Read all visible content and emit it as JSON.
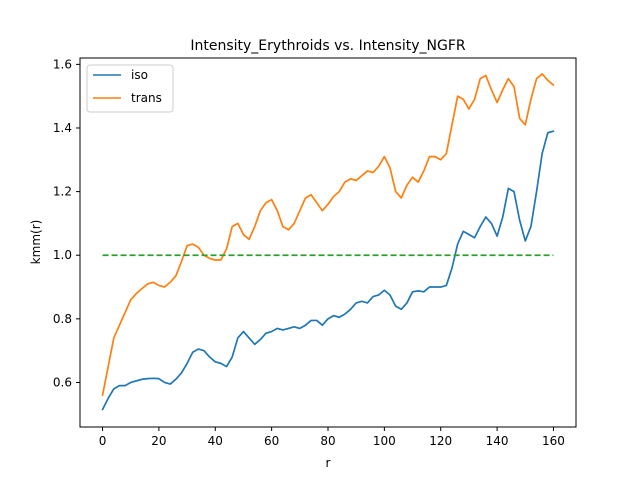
{
  "chart_data": {
    "type": "line",
    "title": "Intensity_Erythroids vs. Intensity_NGFR",
    "xlabel": "r",
    "ylabel": "kmm(r)",
    "xlim": [
      -8,
      168
    ],
    "ylim": [
      0.46,
      1.62
    ],
    "xticks": [
      0,
      20,
      40,
      60,
      80,
      100,
      120,
      140,
      160
    ],
    "yticks": [
      0.6,
      0.8,
      1.0,
      1.2,
      1.4,
      1.6
    ],
    "xtick_labels": [
      "0",
      "20",
      "40",
      "60",
      "80",
      "100",
      "120",
      "140",
      "160"
    ],
    "ytick_labels": [
      "0.6",
      "0.8",
      "1.0",
      "1.2",
      "1.4",
      "1.6"
    ],
    "grid": false,
    "legend_position": "top-left",
    "series": [
      {
        "name": "iso",
        "color": "#1f77b4",
        "style": "solid",
        "x": [
          0,
          2,
          4,
          6,
          8,
          10,
          12,
          14,
          16,
          18,
          20,
          22,
          24,
          26,
          28,
          30,
          32,
          34,
          36,
          38,
          40,
          42,
          44,
          46,
          48,
          50,
          52,
          54,
          56,
          58,
          60,
          62,
          64,
          66,
          68,
          70,
          72,
          74,
          76,
          78,
          80,
          82,
          84,
          86,
          88,
          90,
          92,
          94,
          96,
          98,
          100,
          102,
          104,
          106,
          108,
          110,
          112,
          114,
          116,
          118,
          120,
          122,
          124,
          126,
          128,
          130,
          132,
          134,
          136,
          138,
          140,
          142,
          144,
          146,
          148,
          150,
          152,
          154,
          156,
          158,
          160
        ],
        "y": [
          0.515,
          0.55,
          0.58,
          0.59,
          0.59,
          0.6,
          0.605,
          0.61,
          0.612,
          0.613,
          0.612,
          0.6,
          0.595,
          0.61,
          0.63,
          0.66,
          0.695,
          0.705,
          0.7,
          0.68,
          0.665,
          0.66,
          0.65,
          0.68,
          0.74,
          0.76,
          0.74,
          0.72,
          0.735,
          0.755,
          0.76,
          0.77,
          0.765,
          0.77,
          0.775,
          0.77,
          0.78,
          0.795,
          0.795,
          0.78,
          0.8,
          0.81,
          0.805,
          0.815,
          0.83,
          0.85,
          0.855,
          0.85,
          0.87,
          0.875,
          0.89,
          0.875,
          0.84,
          0.83,
          0.85,
          0.885,
          0.888,
          0.885,
          0.9,
          0.9,
          0.9,
          0.905,
          0.96,
          1.035,
          1.075,
          1.065,
          1.055,
          1.09,
          1.12,
          1.1,
          1.06,
          1.12,
          1.21,
          1.2,
          1.11,
          1.045,
          1.09,
          1.2,
          1.32,
          1.385,
          1.39
        ]
      },
      {
        "name": "trans",
        "color": "#ff7f0e",
        "style": "solid",
        "x": [
          0,
          2,
          4,
          6,
          8,
          10,
          12,
          14,
          16,
          18,
          20,
          22,
          24,
          26,
          28,
          30,
          32,
          34,
          36,
          38,
          40,
          42,
          44,
          46,
          48,
          50,
          52,
          54,
          56,
          58,
          60,
          62,
          64,
          66,
          68,
          70,
          72,
          74,
          76,
          78,
          80,
          82,
          84,
          86,
          88,
          90,
          92,
          94,
          96,
          98,
          100,
          102,
          104,
          106,
          108,
          110,
          112,
          114,
          116,
          118,
          120,
          122,
          124,
          126,
          128,
          130,
          132,
          134,
          136,
          138,
          140,
          142,
          144,
          146,
          148,
          150,
          152,
          154,
          156,
          158,
          160
        ],
        "y": [
          0.56,
          0.65,
          0.74,
          0.78,
          0.82,
          0.86,
          0.88,
          0.895,
          0.91,
          0.915,
          0.905,
          0.9,
          0.915,
          0.935,
          0.98,
          1.03,
          1.035,
          1.025,
          1.0,
          0.99,
          0.985,
          0.985,
          1.02,
          1.09,
          1.1,
          1.065,
          1.05,
          1.09,
          1.14,
          1.165,
          1.175,
          1.14,
          1.09,
          1.08,
          1.1,
          1.14,
          1.18,
          1.19,
          1.165,
          1.14,
          1.16,
          1.185,
          1.2,
          1.23,
          1.24,
          1.235,
          1.25,
          1.265,
          1.26,
          1.28,
          1.31,
          1.275,
          1.2,
          1.18,
          1.22,
          1.245,
          1.23,
          1.265,
          1.31,
          1.31,
          1.3,
          1.32,
          1.41,
          1.5,
          1.49,
          1.46,
          1.49,
          1.555,
          1.565,
          1.52,
          1.48,
          1.52,
          1.555,
          1.53,
          1.43,
          1.41,
          1.49,
          1.555,
          1.57,
          1.55,
          1.535
        ]
      },
      {
        "name": "",
        "color": "#2ca02c",
        "style": "dashed",
        "x": [
          0,
          160
        ],
        "y": [
          1.0,
          1.0
        ]
      }
    ]
  }
}
